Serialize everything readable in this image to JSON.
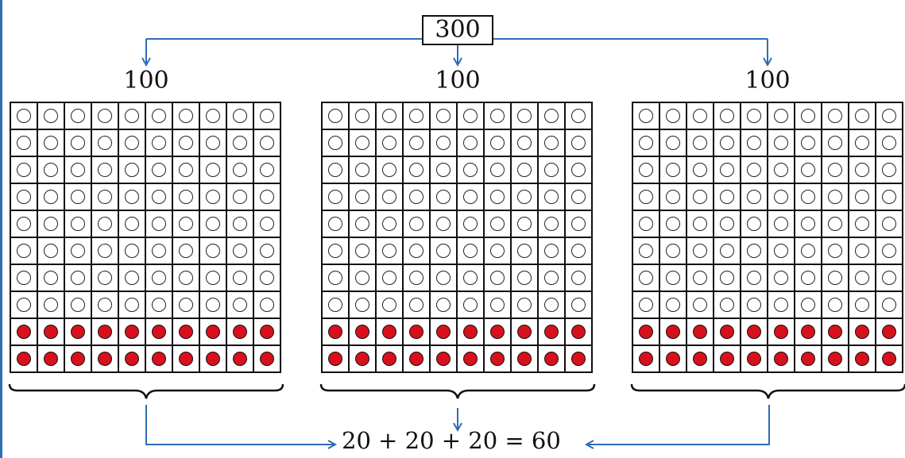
{
  "diagram": {
    "total": "300",
    "equation": "20 + 20 + 20 = 60",
    "colors": {
      "arrow": "#2f6db5",
      "filled_counter": "#d8101c"
    },
    "groups": [
      {
        "label": "100",
        "rows": 10,
        "cols": 10,
        "filled_rows": 2,
        "filled_count": 20
      },
      {
        "label": "100",
        "rows": 10,
        "cols": 10,
        "filled_rows": 2,
        "filled_count": 20
      },
      {
        "label": "100",
        "rows": 10,
        "cols": 10,
        "filled_rows": 2,
        "filled_count": 20
      }
    ]
  }
}
